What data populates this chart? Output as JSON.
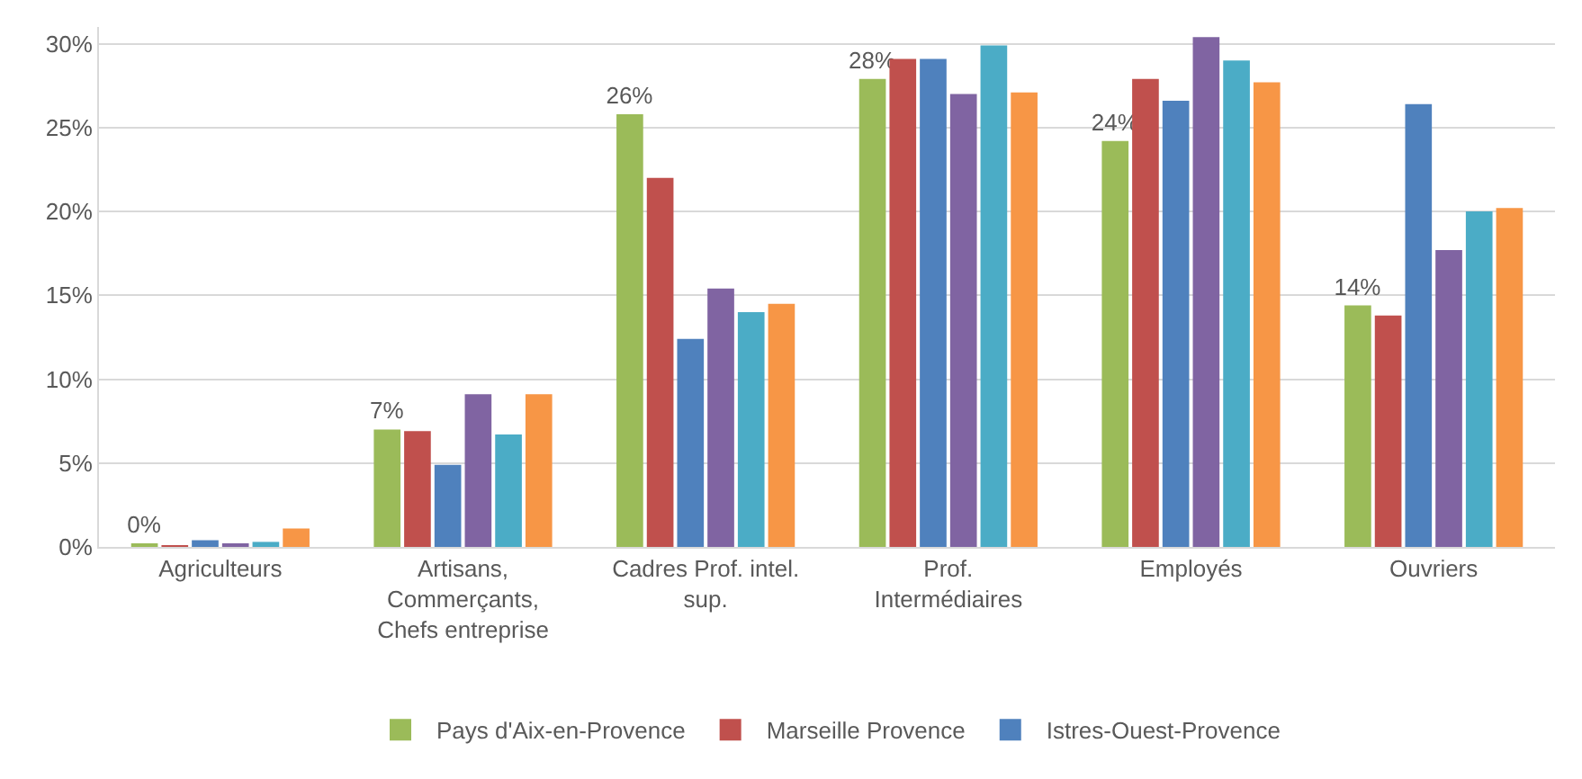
{
  "chart_data": {
    "type": "bar",
    "categories": [
      "Agriculteurs",
      "Artisans,\nCommerçants,\nChefs entreprise",
      "Cadres Prof. intel.\nsup.",
      "Prof.\nIntermédiaires",
      "Employés",
      "Ouvriers"
    ],
    "series": [
      {
        "name": "Pays d'Aix-en-Provence",
        "color": "#9bbb59",
        "values": [
          0.2,
          7.0,
          25.8,
          27.9,
          24.2,
          14.4
        ],
        "value_labels": [
          "0%",
          "7%",
          "26%",
          "28%",
          "24%",
          "14%"
        ]
      },
      {
        "name": "Marseille Provence",
        "color": "#c0504d",
        "values": [
          0.1,
          6.9,
          22.0,
          29.1,
          27.9,
          13.8
        ]
      },
      {
        "name": "Istres-Ouest-Provence",
        "color": "#4f81bd",
        "values": [
          0.4,
          4.9,
          12.4,
          29.1,
          26.6,
          26.4
        ]
      },
      {
        "color": "#8064a2",
        "values": [
          0.2,
          9.1,
          15.4,
          27.0,
          30.4,
          17.7
        ]
      },
      {
        "color": "#4bacc6",
        "values": [
          0.3,
          6.7,
          14.0,
          29.9,
          29.0,
          20.0
        ]
      },
      {
        "color": "#f79646",
        "values": [
          1.1,
          9.1,
          14.5,
          27.1,
          27.7,
          20.2
        ]
      }
    ],
    "ylim": [
      0,
      31
    ],
    "yticks": [
      {
        "value": 0,
        "label": "0%"
      },
      {
        "value": 5,
        "label": "5%"
      },
      {
        "value": 10,
        "label": "10%"
      },
      {
        "value": 15,
        "label": "15%"
      },
      {
        "value": 20,
        "label": "20%"
      },
      {
        "value": 25,
        "label": "25%"
      },
      {
        "value": 30,
        "label": "30%"
      }
    ],
    "grid": "y",
    "legend": "bottom"
  }
}
